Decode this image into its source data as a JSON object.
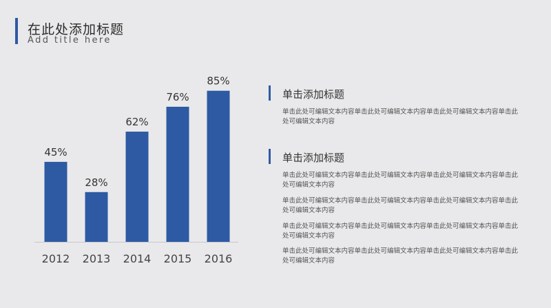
{
  "header": {
    "title": "在此处添加标题",
    "subtitle": "Add title here"
  },
  "chart_data": {
    "type": "bar",
    "categories": [
      "2012",
      "2013",
      "2014",
      "2015",
      "2016"
    ],
    "values": [
      45,
      28,
      62,
      76,
      85
    ],
    "value_labels": [
      "45%",
      "28%",
      "62%",
      "76%",
      "85%"
    ],
    "title": "",
    "xlabel": "",
    "ylabel": "",
    "ylim": [
      0,
      100
    ],
    "grid": false,
    "bar_color": "#2e5aa3"
  },
  "sections": [
    {
      "title": "单击添加标题",
      "paragraphs": [
        "单击此处可编辑文本内容单击此处可编辑文本内容单击此处可编辑文本内容单击此处可编辑文本内容"
      ]
    },
    {
      "title": "单击添加标题",
      "paragraphs": [
        "单击此处可编辑文本内容单击此处可编辑文本内容单击此处可编辑文本内容单击此处可编辑文本内容",
        "单击此处可编辑文本内容单击此处可编辑文本内容单击此处可编辑文本内容单击此处可编辑文本内容",
        "单击此处可编辑文本内容单击此处可编辑文本内容单击此处可编辑文本内容单击此处可编辑文本内容",
        "单击此处可编辑文本内容单击此处可编辑文本内容单击此处可编辑文本内容单击此处可编辑文本内容"
      ]
    }
  ],
  "colors": {
    "accent": "#2e5aa3",
    "background": "#e9e9eb"
  }
}
